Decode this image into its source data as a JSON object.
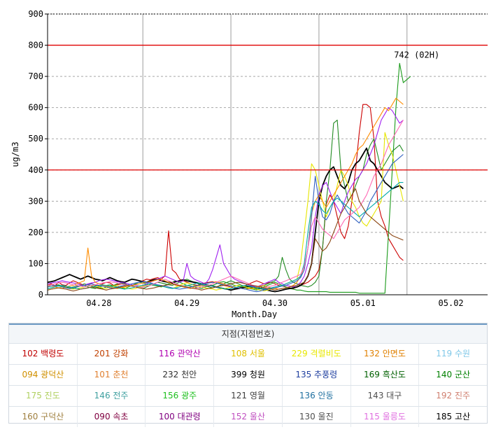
{
  "chart_data": {
    "type": "line",
    "ylabel": "ug/m3",
    "xlabel": "Month.Day",
    "ylim": [
      0,
      900
    ],
    "yticks": [
      "0",
      "100",
      "200",
      "300",
      "400",
      "500",
      "600",
      "700",
      "800",
      "900"
    ],
    "xlim": [
      0,
      120
    ],
    "xticks": [
      {
        "label": "04.28",
        "x": 14
      },
      {
        "label": "04.29",
        "x": 38
      },
      {
        "label": "04.30",
        "x": 62
      },
      {
        "label": "05.01",
        "x": 86
      },
      {
        "label": "05.02",
        "x": 110
      }
    ],
    "reference_lines": [
      400,
      800
    ],
    "reference_color": "#e00000",
    "annotation": {
      "text": "742 (02H)",
      "x": 96,
      "y": 742
    },
    "series": [
      {
        "color": "#cc0000",
        "values": [
          30,
          35,
          28,
          40,
          32,
          30,
          38,
          45,
          40,
          35,
          30,
          32,
          36,
          30,
          28,
          35,
          40,
          38,
          30,
          32,
          34,
          36,
          30,
          28,
          35,
          40,
          45,
          50,
          48,
          52,
          55,
          50,
          60,
          205,
          80,
          70,
          50,
          45,
          40,
          35,
          32,
          30,
          35,
          38,
          40,
          42,
          38,
          35,
          30,
          28,
          25,
          20,
          22,
          25,
          30,
          35,
          40,
          45,
          40,
          35,
          38,
          40,
          35,
          30,
          28,
          25,
          22,
          20,
          25,
          30,
          35,
          40,
          50,
          60,
          80,
          150,
          290,
          320,
          300,
          250,
          200,
          180,
          220,
          300,
          400,
          520,
          610,
          610,
          600,
          500,
          300,
          250,
          220,
          180,
          160,
          140,
          120,
          110
        ]
      },
      {
        "color": "#1a9a1a",
        "values": [
          20,
          22,
          25,
          30,
          28,
          25,
          22,
          20,
          25,
          28,
          30,
          25,
          22,
          20,
          25,
          28,
          30,
          32,
          28,
          25,
          22,
          20,
          25,
          30,
          35,
          40,
          38,
          35,
          32,
          30,
          28,
          25,
          30,
          35,
          40,
          45,
          40,
          35,
          30,
          28,
          25,
          22,
          20,
          25,
          28,
          30,
          35,
          40,
          42,
          38,
          35,
          30,
          28,
          25,
          22,
          20,
          18,
          15,
          20,
          25,
          30,
          35,
          40,
          35,
          30,
          25,
          20,
          18,
          15,
          15,
          12,
          10,
          10,
          10,
          10,
          10,
          10,
          8,
          8,
          8,
          8,
          8,
          8,
          8,
          8,
          5,
          5,
          5,
          5,
          5,
          5,
          5,
          5,
          200,
          400,
          600,
          742,
          680,
          690,
          700
        ]
      },
      {
        "color": "#228b22",
        "values": [
          25,
          28,
          30,
          32,
          28,
          25,
          22,
          25,
          28,
          30,
          35,
          32,
          28,
          25,
          22,
          20,
          25,
          28,
          30,
          35,
          38,
          35,
          30,
          28,
          25,
          22,
          20,
          25,
          30,
          35,
          40,
          38,
          35,
          32,
          30,
          35,
          40,
          45,
          50,
          45,
          40,
          35,
          30,
          28,
          25,
          22,
          25,
          30,
          35,
          40,
          45,
          40,
          35,
          30,
          28,
          25,
          22,
          20,
          25,
          30,
          35,
          40,
          45,
          60,
          120,
          80,
          50,
          40,
          35,
          30,
          28,
          25,
          30,
          40,
          60,
          150,
          300,
          400,
          550,
          560,
          400,
          350,
          300,
          320,
          350,
          380,
          400,
          450,
          480,
          500,
          450,
          400,
          420,
          440,
          460,
          470,
          480,
          460
        ]
      },
      {
        "color": "#000000",
        "values": [
          40,
          42,
          45,
          50,
          55,
          60,
          65,
          60,
          55,
          50,
          55,
          60,
          55,
          50,
          48,
          45,
          50,
          55,
          50,
          45,
          42,
          40,
          45,
          50,
          48,
          45,
          42,
          40,
          45,
          48,
          50,
          45,
          42,
          40,
          38,
          42,
          45,
          48,
          45,
          42,
          40,
          38,
          35,
          32,
          30,
          28,
          25,
          22,
          20,
          18,
          15,
          18,
          20,
          22,
          25,
          28,
          25,
          22,
          20,
          18,
          15,
          12,
          10,
          12,
          15,
          18,
          20,
          22,
          25,
          30,
          40,
          60,
          100,
          200,
          300,
          350,
          380,
          400,
          410,
          380,
          350,
          340,
          360,
          400,
          420,
          430,
          450,
          470,
          430,
          420,
          400,
          380,
          360,
          350,
          340,
          345,
          350,
          340
        ]
      },
      {
        "color": "#e6e600",
        "values": [
          15,
          18,
          20,
          22,
          25,
          22,
          20,
          18,
          20,
          22,
          25,
          28,
          30,
          28,
          25,
          22,
          20,
          25,
          28,
          30,
          25,
          22,
          20,
          18,
          20,
          25,
          28,
          30,
          35,
          32,
          30,
          28,
          25,
          22,
          20,
          25,
          30,
          35,
          38,
          35,
          30,
          28,
          25,
          22,
          20,
          18,
          15,
          18,
          20,
          22,
          25,
          28,
          30,
          28,
          25,
          22,
          20,
          18,
          15,
          12,
          15,
          18,
          20,
          25,
          30,
          35,
          40,
          45,
          50,
          100,
          200,
          300,
          420,
          400,
          350,
          300,
          250,
          280,
          300,
          350,
          400,
          380,
          350,
          300,
          280,
          250,
          230,
          220,
          240,
          260,
          280,
          300,
          520,
          480,
          450,
          400,
          350,
          300
        ]
      },
      {
        "color": "#a020f0",
        "values": [
          35,
          38,
          40,
          42,
          45,
          42,
          40,
          38,
          35,
          32,
          30,
          35,
          38,
          40,
          45,
          48,
          50,
          48,
          45,
          42,
          40,
          38,
          35,
          32,
          30,
          28,
          30,
          35,
          40,
          45,
          50,
          55,
          60,
          55,
          50,
          45,
          40,
          45,
          100,
          60,
          50,
          45,
          40,
          35,
          50,
          80,
          120,
          160,
          100,
          80,
          60,
          50,
          45,
          40,
          35,
          30,
          28,
          25,
          30,
          35,
          40,
          45,
          50,
          40,
          35,
          30,
          28,
          25,
          30,
          40,
          60,
          100,
          150,
          250,
          320,
          350,
          360,
          330,
          300,
          280,
          260,
          300,
          330,
          350,
          370,
          380,
          400,
          420,
          450,
          480,
          520,
          560,
          580,
          600,
          590,
          570,
          550,
          560
        ]
      },
      {
        "color": "#ff8c00",
        "values": [
          30,
          28,
          25,
          22,
          20,
          25,
          28,
          30,
          35,
          40,
          45,
          150,
          60,
          40,
          35,
          30,
          28,
          25,
          22,
          20,
          22,
          25,
          28,
          30,
          32,
          35,
          38,
          40,
          42,
          45,
          48,
          50,
          45,
          40,
          35,
          30,
          28,
          25,
          22,
          20,
          25,
          28,
          30,
          35,
          38,
          40,
          42,
          38,
          35,
          30,
          28,
          25,
          22,
          20,
          18,
          20,
          22,
          25,
          28,
          30,
          25,
          22,
          20,
          18,
          20,
          22,
          25,
          30,
          40,
          60,
          90,
          150,
          260,
          300,
          320,
          300,
          280,
          300,
          320,
          340,
          360,
          380,
          400,
          420,
          450,
          470,
          480,
          500,
          520,
          540,
          560,
          580,
          600,
          590,
          610,
          630,
          620,
          610
        ]
      },
      {
        "color": "#3060c0",
        "values": [
          25,
          28,
          30,
          28,
          25,
          22,
          20,
          22,
          25,
          28,
          30,
          32,
          35,
          32,
          30,
          28,
          25,
          22,
          20,
          25,
          28,
          30,
          32,
          35,
          38,
          40,
          42,
          40,
          38,
          35,
          32,
          30,
          28,
          25,
          22,
          20,
          18,
          20,
          22,
          25,
          28,
          30,
          32,
          35,
          38,
          40,
          38,
          35,
          32,
          30,
          28,
          25,
          22,
          20,
          18,
          15,
          12,
          10,
          12,
          15,
          18,
          20,
          22,
          25,
          28,
          30,
          35,
          40,
          45,
          55,
          80,
          150,
          250,
          380,
          300,
          250,
          240,
          260,
          300,
          320,
          300,
          280,
          260,
          250,
          240,
          230,
          250,
          270,
          300,
          320,
          340,
          360,
          380,
          400,
          420,
          430,
          440,
          450
        ]
      },
      {
        "color": "#00aaaa",
        "values": [
          20,
          22,
          25,
          28,
          30,
          28,
          25,
          22,
          20,
          18,
          20,
          22,
          25,
          28,
          30,
          32,
          30,
          28,
          25,
          22,
          20,
          18,
          20,
          22,
          25,
          28,
          30,
          32,
          35,
          32,
          30,
          28,
          25,
          22,
          20,
          22,
          25,
          28,
          30,
          32,
          35,
          38,
          35,
          32,
          30,
          28,
          25,
          22,
          20,
          18,
          20,
          22,
          25,
          28,
          30,
          28,
          25,
          22,
          20,
          18,
          20,
          22,
          25,
          28,
          30,
          35,
          40,
          45,
          50,
          60,
          100,
          200,
          280,
          300,
          290,
          270,
          260,
          280,
          300,
          310,
          300,
          290,
          280,
          270,
          260,
          250,
          260,
          270,
          280,
          290,
          300,
          310,
          320,
          330,
          340,
          350,
          360,
          360
        ]
      },
      {
        "color": "#ff69b4",
        "values": [
          30,
          32,
          35,
          38,
          40,
          38,
          35,
          32,
          30,
          28,
          25,
          28,
          30,
          32,
          35,
          38,
          40,
          42,
          40,
          38,
          35,
          32,
          30,
          28,
          25,
          22,
          25,
          28,
          30,
          35,
          40,
          45,
          50,
          45,
          40,
          35,
          30,
          28,
          25,
          22,
          20,
          22,
          25,
          28,
          30,
          35,
          40,
          45,
          50,
          55,
          60,
          55,
          50,
          45,
          40,
          35,
          30,
          28,
          25,
          22,
          25,
          28,
          30,
          35,
          40,
          45,
          50,
          55,
          60,
          65,
          90,
          150,
          220,
          250,
          230,
          210,
          200,
          190,
          180,
          200,
          220,
          240,
          250,
          260,
          270,
          280,
          300,
          320,
          350,
          380,
          400,
          420,
          450,
          480,
          500,
          520,
          540,
          560
        ]
      },
      {
        "color": "#8b4513",
        "values": [
          15,
          18,
          20,
          22,
          20,
          18,
          15,
          12,
          15,
          18,
          20,
          22,
          25,
          22,
          20,
          18,
          15,
          18,
          20,
          22,
          25,
          28,
          30,
          28,
          25,
          22,
          20,
          18,
          20,
          22,
          25,
          28,
          30,
          32,
          35,
          32,
          30,
          28,
          25,
          22,
          20,
          18,
          15,
          18,
          20,
          22,
          25,
          28,
          30,
          32,
          35,
          38,
          40,
          38,
          35,
          32,
          30,
          28,
          25,
          22,
          20,
          18,
          15,
          18,
          20,
          22,
          25,
          28,
          30,
          35,
          40,
          60,
          100,
          180,
          160,
          140,
          150,
          170,
          200,
          230,
          260,
          280,
          300,
          320,
          340,
          300,
          280,
          260,
          250,
          240,
          230,
          220,
          210,
          200,
          190,
          185,
          180,
          175
        ]
      }
    ]
  },
  "legend": {
    "title": "지점(지점번호)",
    "rows": [
      [
        {
          "label": "102 백령도",
          "color": "#c00000"
        },
        {
          "label": "201 강화",
          "color": "#c04000"
        },
        {
          "label": "116 관악산",
          "color": "#b000b0"
        },
        {
          "label": "108 서울",
          "color": "#e0c000"
        },
        {
          "label": "229 격렬비도",
          "color": "#e8e800"
        },
        {
          "label": "132 안면도",
          "color": "#e08000"
        },
        {
          "label": "119 수원",
          "color": "#80c8e8"
        }
      ],
      [
        {
          "label": "094 광덕산",
          "color": "#d09000"
        },
        {
          "label": "101 춘천",
          "color": "#e08030"
        },
        {
          "label": "232 천안",
          "color": "#303030"
        },
        {
          "label": "399 청원",
          "color": "#000000"
        },
        {
          "label": "135 추풍령",
          "color": "#2040a0"
        },
        {
          "label": "169 흑산도",
          "color": "#006000"
        },
        {
          "label": "140 군산",
          "color": "#008000"
        }
      ],
      [
        {
          "label": "175 진도",
          "color": "#b0d060"
        },
        {
          "label": "146 전주",
          "color": "#40a0a0"
        },
        {
          "label": "156 광주",
          "color": "#20c020"
        },
        {
          "label": "121 영월",
          "color": "#404040"
        },
        {
          "label": "136 안동",
          "color": "#2070a0"
        },
        {
          "label": "143 대구",
          "color": "#505050"
        },
        {
          "label": "192 진주",
          "color": "#d08070"
        }
      ],
      [
        {
          "label": "160 구덕산",
          "color": "#a08040"
        },
        {
          "label": "090 속초",
          "color": "#800040"
        },
        {
          "label": "100 대관령",
          "color": "#800080"
        },
        {
          "label": "152 울산",
          "color": "#c050c0"
        },
        {
          "label": "130 울진",
          "color": "#505050"
        },
        {
          "label": "115 울릉도",
          "color": "#e070e0"
        },
        {
          "label": "185 고산",
          "color": "#000000"
        }
      ]
    ]
  }
}
